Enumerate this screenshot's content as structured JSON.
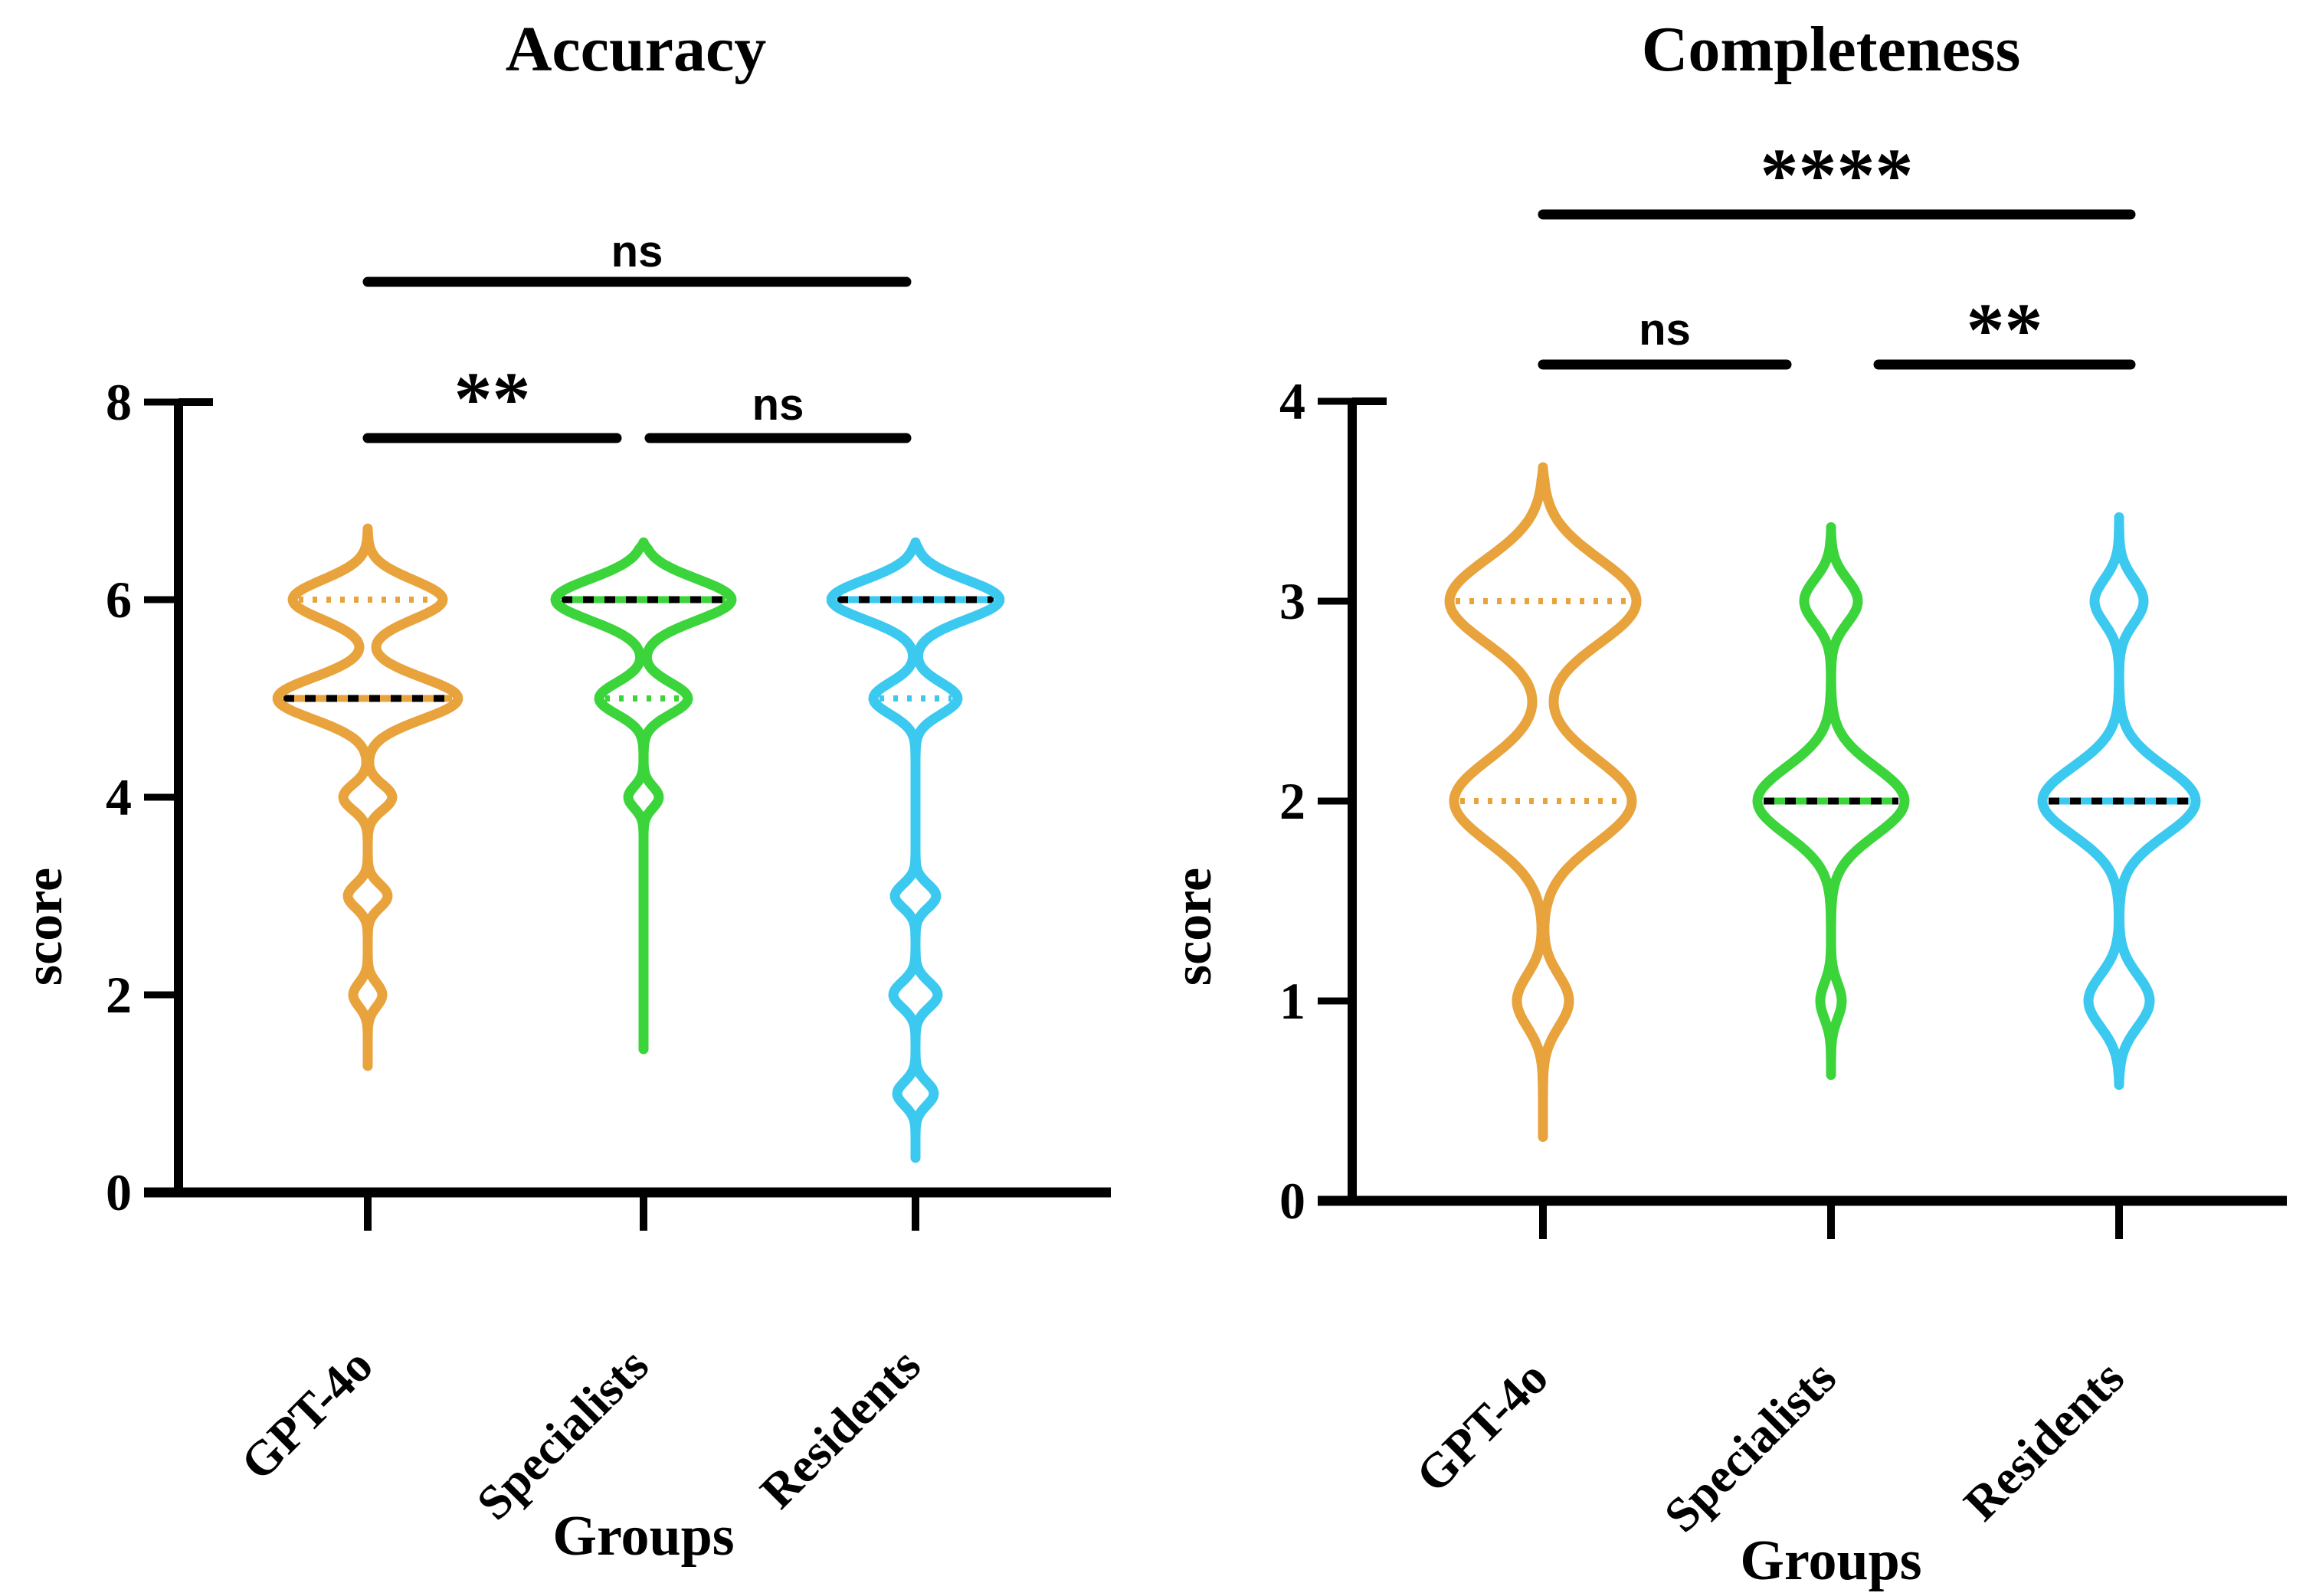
{
  "chart_data": {
    "type": "violin",
    "panels": [
      {
        "title": "Accuracy",
        "xlabel": "Groups",
        "ylabel": "score",
        "ylim": [
          0,
          8
        ],
        "yticks": [
          0,
          2,
          4,
          6,
          8
        ],
        "categories": [
          "GPT-4o",
          "Specialists",
          "Residents"
        ],
        "series": [
          {
            "name": "GPT-4o",
            "color": "#E8A33C",
            "range": [
              1.28,
              6.72
            ],
            "median": 5,
            "quartile_lines": [
              6
            ],
            "median_lines": [
              5
            ],
            "density": [
              {
                "score": 6,
                "hw": 98,
                "bw": 0.2
              },
              {
                "score": 5,
                "hw": 118,
                "bw": 0.21
              },
              {
                "score": 4,
                "hw": 32,
                "bw": 0.13
              },
              {
                "score": 3,
                "hw": 26,
                "bw": 0.12
              },
              {
                "score": 2,
                "hw": 19,
                "bw": 0.12
              }
            ]
          },
          {
            "name": "Specialists",
            "color": "#3BD53B",
            "range": [
              1.45,
              6.58
            ],
            "median": 6,
            "quartile_lines": [
              5
            ],
            "median_lines": [
              6
            ],
            "density": [
              {
                "score": 6,
                "hw": 115,
                "bw": 0.21
              },
              {
                "score": 5,
                "hw": 58,
                "bw": 0.16
              },
              {
                "score": 4,
                "hw": 20,
                "bw": 0.11
              }
            ]
          },
          {
            "name": "Residents",
            "color": "#3CC9F0",
            "range": [
              0.35,
              6.58
            ],
            "median": 6,
            "quartile_lines": [
              5
            ],
            "median_lines": [
              6
            ],
            "density": [
              {
                "score": 6,
                "hw": 110,
                "bw": 0.2
              },
              {
                "score": 5,
                "hw": 55,
                "bw": 0.16
              },
              {
                "score": 3,
                "hw": 27,
                "bw": 0.12
              },
              {
                "score": 2,
                "hw": 29,
                "bw": 0.13
              },
              {
                "score": 1,
                "hw": 24,
                "bw": 0.12
              }
            ]
          }
        ],
        "significance": [
          {
            "a": 0,
            "b": 2,
            "label": "ns"
          },
          {
            "a": 0,
            "b": 1,
            "label": "**"
          },
          {
            "a": 1,
            "b": 2,
            "label": "ns"
          }
        ]
      },
      {
        "title": "Completeness",
        "xlabel": "Groups",
        "ylabel": "score",
        "ylim": [
          0,
          4
        ],
        "yticks": [
          0,
          1,
          2,
          3,
          4
        ],
        "categories": [
          "GPT-4o",
          "Specialists",
          "Residents"
        ],
        "series": [
          {
            "name": "GPT-4o",
            "color": "#E8A33C",
            "range": [
              0.32,
              3.67
            ],
            "median": null,
            "quartile_lines": [
              2,
              3
            ],
            "median_lines": [],
            "density": [
              {
                "score": 3,
                "hw": 122,
                "bw": 0.21
              },
              {
                "score": 2,
                "hw": 116,
                "bw": 0.21
              },
              {
                "score": 1,
                "hw": 34,
                "bw": 0.13
              }
            ]
          },
          {
            "name": "Specialists",
            "color": "#3BD53B",
            "range": [
              0.63,
              3.37
            ],
            "median": 2,
            "quartile_lines": [],
            "median_lines": [
              2
            ],
            "density": [
              {
                "score": 3,
                "hw": 35,
                "bw": 0.11
              },
              {
                "score": 2,
                "hw": 96,
                "bw": 0.17
              },
              {
                "score": 1,
                "hw": 14,
                "bw": 0.09
              }
            ]
          },
          {
            "name": "Residents",
            "color": "#3CC9F0",
            "range": [
              0.58,
              3.42
            ],
            "median": 2,
            "quartile_lines": [],
            "median_lines": [
              2
            ],
            "density": [
              {
                "score": 3,
                "hw": 32,
                "bw": 0.11
              },
              {
                "score": 2,
                "hw": 100,
                "bw": 0.17
              },
              {
                "score": 1,
                "hw": 40,
                "bw": 0.13
              }
            ]
          }
        ],
        "significance": [
          {
            "a": 0,
            "b": 2,
            "label": "****"
          },
          {
            "a": 0,
            "b": 1,
            "label": "ns"
          },
          {
            "a": 1,
            "b": 2,
            "label": "**"
          }
        ]
      }
    ]
  },
  "colors": {
    "gpt4o": "#E8A33C",
    "specialists": "#3BD53B",
    "residents": "#3CC9F0",
    "axis": "#000000"
  }
}
